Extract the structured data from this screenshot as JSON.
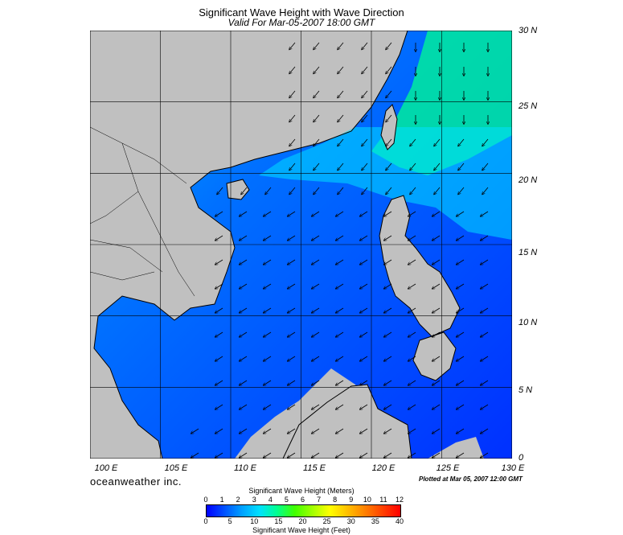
{
  "title": "Significant Wave Height with Wave Direction",
  "subtitle": "Valid For Mar-05-2007 18:00 GMT",
  "brand": "oceanweather inc.",
  "plotted": "Plotted at Mar 05, 2007 12:00 GMT",
  "lat_labels": [
    "30 N",
    "25 N",
    "20 N",
    "15 N",
    "10 N",
    "5 N",
    "0"
  ],
  "lon_labels": [
    "100 E",
    "105 E",
    "110 E",
    "115 E",
    "120 E",
    "125 E",
    "130 E"
  ],
  "colorbar": {
    "title_meters": "Significant Wave Height (Meters)",
    "title_feet": "Significant Wave Height (Feet)",
    "meters_ticks": [
      "0",
      "1",
      "2",
      "3",
      "4",
      "5",
      "6",
      "7",
      "8",
      "9",
      "10",
      "11",
      "12"
    ],
    "feet_ticks": [
      "0",
      "5",
      "10",
      "15",
      "20",
      "25",
      "30",
      "35",
      "40"
    ],
    "colors": [
      "#0000ff",
      "#0050ff",
      "#00a0ff",
      "#00e0ff",
      "#00ff90",
      "#40ff00",
      "#a0ff00",
      "#ffff00",
      "#ffc000",
      "#ff8000",
      "#ff4000",
      "#ff0000"
    ]
  },
  "map": {
    "land_color": "#c0c0c0",
    "lon_range": [
      100,
      130
    ],
    "lat_range": [
      0,
      30
    ]
  }
}
